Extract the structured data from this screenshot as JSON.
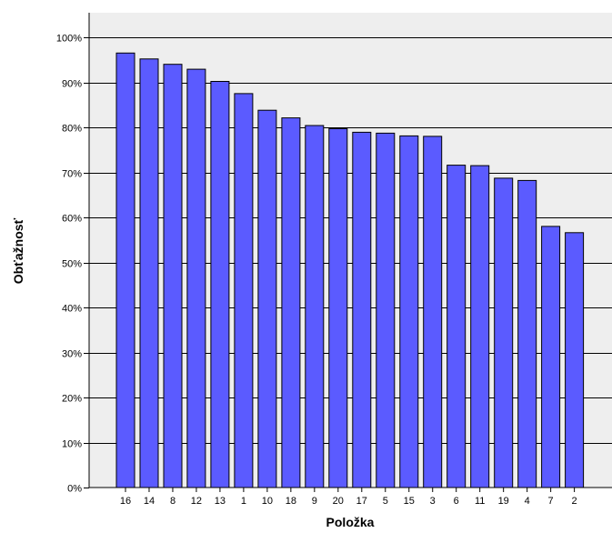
{
  "chart_data": {
    "type": "bar",
    "categories": [
      "16",
      "14",
      "8",
      "12",
      "13",
      "1",
      "10",
      "18",
      "9",
      "20",
      "17",
      "5",
      "15",
      "3",
      "6",
      "11",
      "19",
      "4",
      "7",
      "2"
    ],
    "values": [
      96.5,
      95.2,
      94.0,
      92.9,
      90.2,
      87.5,
      83.8,
      82.1,
      80.4,
      79.7,
      78.9,
      78.7,
      78.1,
      78.0,
      71.6,
      71.5,
      68.7,
      68.2,
      58.0,
      56.6
    ],
    "title": "",
    "xlabel": "Položka",
    "ylabel": "Obťažnosť",
    "ylim": [
      0,
      100
    ],
    "ytick_values": [
      0,
      10,
      20,
      30,
      40,
      50,
      60,
      70,
      80,
      90,
      100
    ],
    "ytick_labels": [
      "0%",
      "10%",
      "20%",
      "30%",
      "40%",
      "50%",
      "60%",
      "70%",
      "80%",
      "90%",
      "100%"
    ],
    "grid": true,
    "colors": {
      "bar_fill": "#5b5bff",
      "bar_stroke": "#000000",
      "plot_background": "#eeeeee",
      "grid": "#000000"
    }
  }
}
